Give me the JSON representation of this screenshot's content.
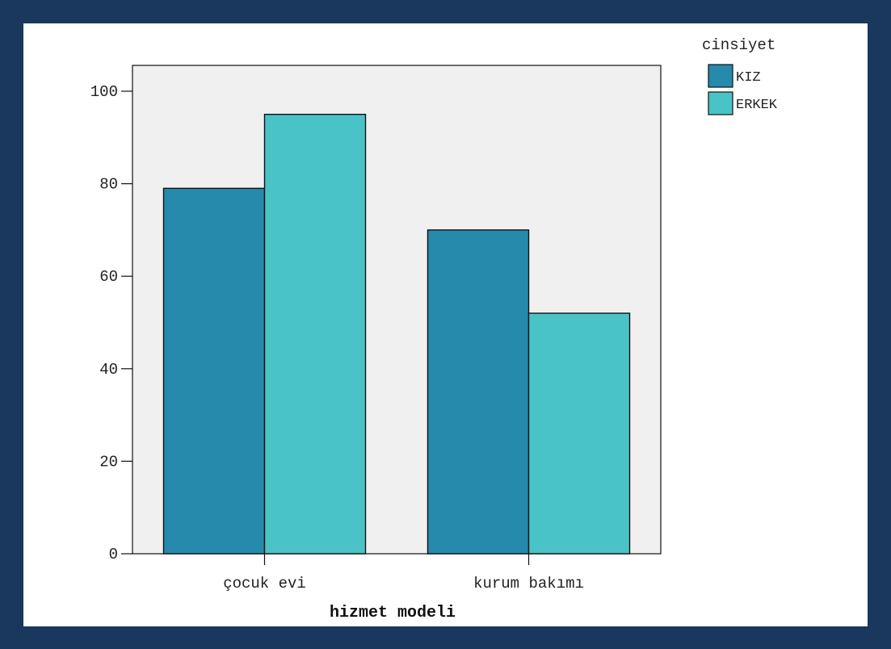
{
  "colors": {
    "border": "#1a375e",
    "plot_bg": "#f0f0f0",
    "series_kiz": "#268aad",
    "series_erkek": "#4ac3c6"
  },
  "chart_data": {
    "type": "bar",
    "categories": [
      "çocuk evi",
      "kurum bakımı"
    ],
    "series": [
      {
        "name": "KIZ",
        "values": [
          79,
          70
        ],
        "color": "#268aad"
      },
      {
        "name": "ERKEK",
        "values": [
          95,
          52
        ],
        "color": "#4ac3c6"
      }
    ],
    "xlabel": "hizmet modeli",
    "ylabel": "",
    "ylim": [
      0,
      100
    ],
    "yticks": [
      0,
      20,
      40,
      60,
      80,
      100
    ],
    "legend": {
      "title": "cinsiyet",
      "position": "top-right"
    },
    "grid": false
  }
}
